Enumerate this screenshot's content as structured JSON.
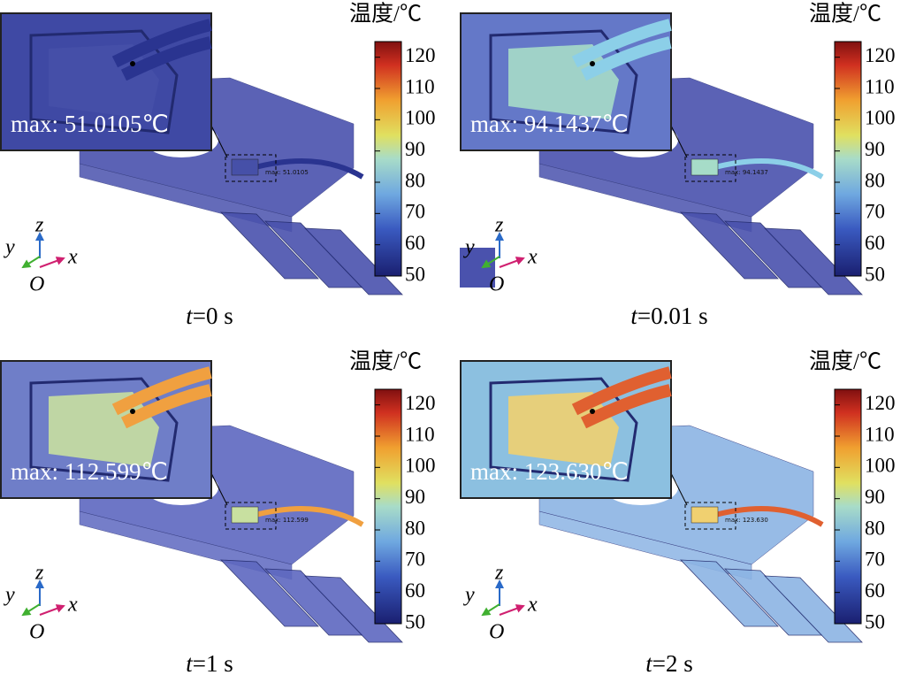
{
  "panels": [
    {
      "time": {
        "var": "t",
        "rest": "=0 s"
      },
      "max_label": "max: 51.0105℃",
      "small_label": "max: 51.0105",
      "colorbar": {
        "title": "温度/℃",
        "lim": [
          50,
          125
        ],
        "ticks": [
          50,
          60,
          70,
          80,
          90,
          100,
          110,
          120
        ]
      },
      "axes": {
        "z": "z",
        "y": "y",
        "x": "x",
        "origin": "O"
      }
    },
    {
      "time": {
        "var": "t",
        "rest": "=0.01 s"
      },
      "max_label": "max: 94.1437℃",
      "small_label": "max: 94.1437",
      "colorbar": {
        "title": "温度/℃",
        "lim": [
          50,
          125
        ],
        "ticks": [
          50,
          60,
          70,
          80,
          90,
          100,
          110,
          120
        ]
      },
      "axes": {
        "z": "z",
        "y": "y",
        "x": "x",
        "origin": "O"
      }
    },
    {
      "time": {
        "var": "t",
        "rest": "=1 s"
      },
      "max_label": "max: 112.599℃",
      "small_label": "max: 112.599",
      "colorbar": {
        "title": "温度/℃",
        "lim": [
          50,
          125
        ],
        "ticks": [
          50,
          60,
          70,
          80,
          90,
          100,
          110,
          120
        ]
      },
      "axes": {
        "z": "z",
        "y": "y",
        "x": "x",
        "origin": "O"
      }
    },
    {
      "time": {
        "var": "t",
        "rest": "=2 s"
      },
      "max_label": "max: 123.630℃",
      "small_label": "max: 123.630",
      "colorbar": {
        "title": "温度/℃",
        "lim": [
          50,
          125
        ],
        "ticks": [
          50,
          60,
          70,
          80,
          90,
          100,
          110,
          120
        ]
      },
      "axes": {
        "z": "z",
        "y": "y",
        "x": "x",
        "origin": "O"
      }
    }
  ]
}
